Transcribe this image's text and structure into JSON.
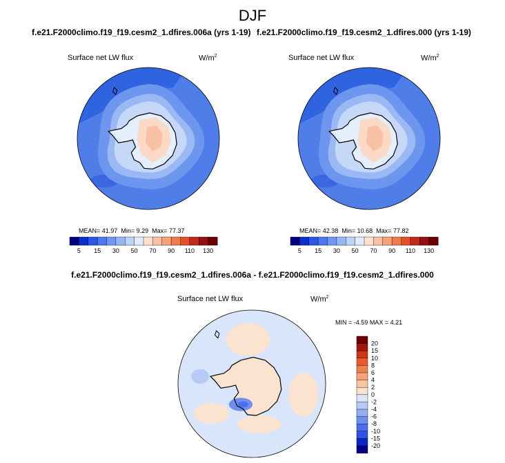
{
  "season_title": "DJF",
  "panels": [
    {
      "case": "f.e21.F2000climo.f19_f19.cesm2_1.dfires.006a (yrs 1-19)",
      "variable": "Surface net LW flux",
      "units": "W/m",
      "units_sup": "2",
      "mean_label": "MEAN=",
      "mean": "41.97",
      "min_label": "Min=",
      "min": "9.29",
      "max_label": "Max=",
      "max": "77.37"
    },
    {
      "case": "f.e21.F2000climo.f19_f19.cesm2_1.dfires.000 (yrs 1-19)",
      "variable": "Surface net LW flux",
      "units": "W/m",
      "units_sup": "2",
      "mean_label": "MEAN=",
      "mean": "42.38",
      "min_label": "Min=",
      "min": "10.68",
      "max_label": "Max=",
      "max": "77.82"
    }
  ],
  "diff": {
    "title": "f.e21.F2000climo.f19_f19.cesm2_1.dfires.006a - f.e21.F2000climo.f19_f19.cesm2_1.dfires.000",
    "variable": "Surface net LW flux",
    "units": "W/m",
    "units_sup": "2",
    "min_label": "MIN =",
    "min": "-4.59",
    "max_label": "MAX =",
    "max": "4.21"
  },
  "chart_data": [
    {
      "type": "heatmap",
      "projection": "south-polar-stereographic",
      "field": "Surface net LW flux",
      "units": "W/m^2",
      "case": "f.e21.F2000climo.f19_f19.cesm2_1.dfires.006a (yrs 1-19)",
      "mean": 41.97,
      "min": 9.29,
      "max": 77.37,
      "colorbar": {
        "levels": [
          5,
          10,
          15,
          20,
          30,
          40,
          50,
          60,
          70,
          80,
          90,
          100,
          110,
          120,
          130
        ],
        "tick_labels": [
          "5",
          "15",
          "30",
          "50",
          "70",
          "90",
          "110",
          "130"
        ],
        "colors": [
          "#00007f",
          "#0a2fc8",
          "#2a55e5",
          "#4d79ec",
          "#7198f0",
          "#95b5f4",
          "#bcd2f8",
          "#e0ebfb",
          "#fde2cf",
          "#f9c2a3",
          "#f5a17a",
          "#ee7a52",
          "#e0512c",
          "#c4281a",
          "#96100e",
          "#6a0000"
        ]
      }
    },
    {
      "type": "heatmap",
      "projection": "south-polar-stereographic",
      "field": "Surface net LW flux",
      "units": "W/m^2",
      "case": "f.e21.F2000climo.f19_f19.cesm2_1.dfires.000 (yrs 1-19)",
      "mean": 42.38,
      "min": 10.68,
      "max": 77.82,
      "colorbar": {
        "levels": [
          5,
          10,
          15,
          20,
          30,
          40,
          50,
          60,
          70,
          80,
          90,
          100,
          110,
          120,
          130
        ],
        "tick_labels": [
          "5",
          "15",
          "30",
          "50",
          "70",
          "90",
          "110",
          "130"
        ],
        "colors": [
          "#00007f",
          "#0a2fc8",
          "#2a55e5",
          "#4d79ec",
          "#7198f0",
          "#95b5f4",
          "#bcd2f8",
          "#e0ebfb",
          "#fde2cf",
          "#f9c2a3",
          "#f5a17a",
          "#ee7a52",
          "#e0512c",
          "#c4281a",
          "#96100e",
          "#6a0000"
        ]
      }
    },
    {
      "type": "heatmap",
      "projection": "south-polar-stereographic",
      "field": "Surface net LW flux difference",
      "units": "W/m^2",
      "case": "006a - 000",
      "min": -4.59,
      "max": 4.21,
      "colorbar": {
        "levels": [
          -20,
          -15,
          -10,
          -8,
          -6,
          -4,
          -2,
          0,
          2,
          4,
          6,
          8,
          10,
          15,
          20
        ],
        "tick_labels": [
          "20",
          "15",
          "10",
          "8",
          "6",
          "4",
          "2",
          "0",
          "-2",
          "-4",
          "-6",
          "-8",
          "-10",
          "-15",
          "-20"
        ],
        "colors": [
          "#00008a",
          "#0b24c6",
          "#2e52e6",
          "#4b6fec",
          "#6f8ff0",
          "#94adf4",
          "#b6c9f7",
          "#d8e5fa",
          "#fbe3cf",
          "#f9c4a0",
          "#f6a378",
          "#f1804f",
          "#e85a2c",
          "#cf3516",
          "#a3140b",
          "#6e0000"
        ]
      }
    }
  ]
}
